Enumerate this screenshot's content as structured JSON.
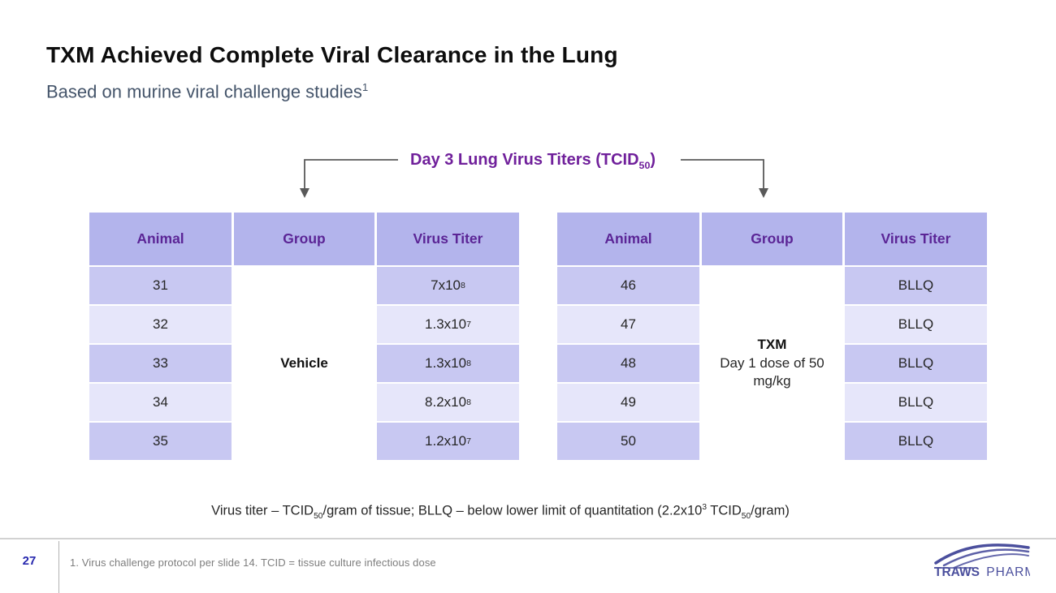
{
  "slide": {
    "title": "TXM Achieved Complete Viral Clearance in the Lung",
    "subtitle": {
      "text": "Based on murine viral challenge studies",
      "superscript": "1"
    },
    "callout": {
      "label": [
        {
          "t": "Day 3 Lung Virus Titers (TCID"
        },
        {
          "sub": "50"
        },
        {
          "t": ")"
        }
      ]
    },
    "tables": [
      {
        "name": "vehicle-group-table",
        "headers": [
          "Animal",
          "Group",
          "Virus Titer"
        ],
        "group_lines": [
          {
            "text": "Vehicle",
            "bold": true
          }
        ],
        "rows": [
          {
            "animal": "31",
            "titer": [
              {
                "t": "7x10"
              },
              {
                "sup": "8"
              }
            ]
          },
          {
            "animal": "32",
            "titer": [
              {
                "t": "1.3x10"
              },
              {
                "sup": "7"
              }
            ]
          },
          {
            "animal": "33",
            "titer": [
              {
                "t": "1.3x10"
              },
              {
                "sup": "8"
              }
            ]
          },
          {
            "animal": "34",
            "titer": [
              {
                "t": "8.2x10"
              },
              {
                "sup": "8"
              }
            ]
          },
          {
            "animal": "35",
            "titer": [
              {
                "t": "1.2x10"
              },
              {
                "sup": "7"
              }
            ]
          }
        ]
      },
      {
        "name": "txm-group-table",
        "headers": [
          "Animal",
          "Group",
          "Virus Titer"
        ],
        "group_lines": [
          {
            "text": "TXM",
            "bold": true
          },
          {
            "text": "Day 1 dose of 50 mg/kg",
            "bold": false
          }
        ],
        "rows": [
          {
            "animal": "46",
            "titer": [
              {
                "t": "BLLQ"
              }
            ]
          },
          {
            "animal": "47",
            "titer": [
              {
                "t": "BLLQ"
              }
            ]
          },
          {
            "animal": "48",
            "titer": [
              {
                "t": "BLLQ"
              }
            ]
          },
          {
            "animal": "49",
            "titer": [
              {
                "t": "BLLQ"
              }
            ]
          },
          {
            "animal": "50",
            "titer": [
              {
                "t": "BLLQ"
              }
            ]
          }
        ]
      }
    ],
    "legend": [
      {
        "t": "Virus titer – TCID"
      },
      {
        "sub": "50"
      },
      {
        "t": "/gram of tissue; BLLQ – below lower limit of quantitation (2.2x10"
      },
      {
        "sup": "3"
      },
      {
        "t": " TCID"
      },
      {
        "sub": "50"
      },
      {
        "t": "/gram)"
      }
    ],
    "footer": {
      "page_number": "27",
      "note": "1. Virus challenge protocol per slide 14. TCID = tissue culture infectious dose",
      "logo_primary": "TRAWS",
      "logo_secondary": "PHARMA"
    },
    "colors": {
      "header_bg": "#b3b4ec",
      "row_dark": "#c8c8f2",
      "row_light": "#e6e6fa",
      "header_text": "#5b2596",
      "accent_purple": "#70209b",
      "subtitle_text": "#44546a",
      "arrow": "#595959",
      "page_number": "#2728ae",
      "logo": "#4b4f9d"
    }
  }
}
